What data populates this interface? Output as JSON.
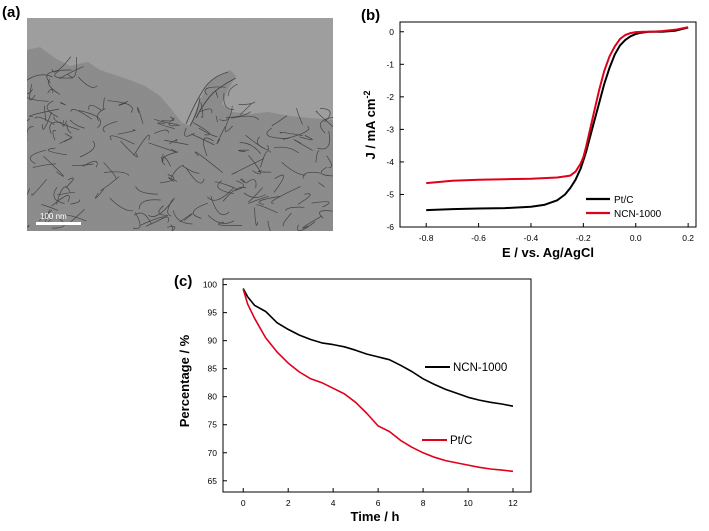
{
  "panels": {
    "a": {
      "label": "(a)",
      "scalebar_text": "100 nm"
    },
    "b": {
      "label": "(b)"
    },
    "c": {
      "label": "(c)"
    }
  },
  "chart_data": [
    {
      "type": "line",
      "panel": "(b)",
      "title": "",
      "xlabel": "E / vs. Ag/AgCl",
      "ylabel": "J / mA cm",
      "ylabel_superscript": "-2",
      "xlim": [
        -0.9,
        0.23
      ],
      "ylim": [
        -6,
        0.3
      ],
      "x_ticks": [
        -0.8,
        -0.6,
        -0.4,
        -0.2,
        0.0,
        0.2
      ],
      "x_tick_labels": [
        "-0.8",
        "-0.6",
        "-0.4",
        "-0.2",
        "0.0",
        "0.2"
      ],
      "y_ticks": [
        0,
        -1,
        -2,
        -3,
        -4,
        -5,
        -6
      ],
      "y_tick_labels": [
        "0",
        "-1",
        "-2",
        "-3",
        "-4",
        "-5",
        "-6"
      ],
      "legend_position": "bottom-right",
      "grid": false,
      "series": [
        {
          "name": "Pt/C",
          "color": "#000000",
          "x": [
            -0.8,
            -0.7,
            -0.6,
            -0.5,
            -0.4,
            -0.35,
            -0.3,
            -0.27,
            -0.25,
            -0.23,
            -0.21,
            -0.2,
            -0.19,
            -0.18,
            -0.16,
            -0.14,
            -0.12,
            -0.1,
            -0.08,
            -0.06,
            -0.04,
            -0.02,
            0.0,
            0.02,
            0.05,
            0.1,
            0.15,
            0.2
          ],
          "y": [
            -5.48,
            -5.45,
            -5.43,
            -5.42,
            -5.38,
            -5.32,
            -5.18,
            -5.0,
            -4.8,
            -4.55,
            -4.2,
            -3.95,
            -3.7,
            -3.4,
            -2.8,
            -2.2,
            -1.6,
            -1.1,
            -0.7,
            -0.42,
            -0.25,
            -0.14,
            -0.07,
            -0.03,
            0.0,
            0.0,
            0.03,
            0.13
          ]
        },
        {
          "name": "NCN-1000",
          "color": "#e0001b",
          "x": [
            -0.8,
            -0.7,
            -0.6,
            -0.5,
            -0.4,
            -0.3,
            -0.25,
            -0.23,
            -0.21,
            -0.2,
            -0.19,
            -0.18,
            -0.16,
            -0.14,
            -0.12,
            -0.1,
            -0.08,
            -0.06,
            -0.04,
            -0.02,
            0.0,
            0.03,
            0.06,
            0.1,
            0.15,
            0.2
          ],
          "y": [
            -4.65,
            -4.58,
            -4.55,
            -4.53,
            -4.52,
            -4.48,
            -4.42,
            -4.3,
            -4.05,
            -3.85,
            -3.55,
            -3.2,
            -2.5,
            -1.8,
            -1.2,
            -0.75,
            -0.45,
            -0.22,
            -0.1,
            -0.04,
            -0.01,
            0.0,
            0.0,
            0.02,
            0.06,
            0.14
          ]
        }
      ]
    },
    {
      "type": "line",
      "panel": "(c)",
      "title": "",
      "xlabel": "Time / h",
      "ylabel": "Percentage / %",
      "xlim": [
        -0.9,
        12.8
      ],
      "ylim": [
        63,
        101
      ],
      "x_ticks": [
        0,
        2,
        4,
        6,
        8,
        10,
        12
      ],
      "x_tick_labels": [
        "0",
        "2",
        "4",
        "6",
        "8",
        "10",
        "12"
      ],
      "y_ticks": [
        65,
        70,
        75,
        80,
        85,
        90,
        95,
        100
      ],
      "y_tick_labels": [
        "65",
        "70",
        "75",
        "80",
        "85",
        "90",
        "95",
        "100"
      ],
      "legend_position": "inline",
      "grid": false,
      "series": [
        {
          "name": "NCN-1000",
          "color": "#000000",
          "x": [
            0,
            0.2,
            0.5,
            1,
            1.5,
            2,
            2.5,
            3,
            3.5,
            4,
            4.5,
            5,
            5.5,
            6,
            6.5,
            7,
            7.5,
            8,
            8.5,
            9,
            9.5,
            10,
            10.5,
            11,
            11.5,
            12
          ],
          "y": [
            99.3,
            97.8,
            96.3,
            95.2,
            93.2,
            92.0,
            91.0,
            90.2,
            89.6,
            89.3,
            88.9,
            88.3,
            87.6,
            87.1,
            86.6,
            85.6,
            84.5,
            83.2,
            82.2,
            81.3,
            80.6,
            79.9,
            79.4,
            79.0,
            78.7,
            78.3
          ]
        },
        {
          "name": "Pt/C",
          "color": "#e0001b",
          "x": [
            0,
            0.2,
            0.5,
            1,
            1.5,
            2,
            2.5,
            3,
            3.5,
            4,
            4.5,
            5,
            5.5,
            6,
            6.5,
            7,
            7.5,
            8,
            8.5,
            9,
            9.5,
            10,
            10.5,
            11,
            11.5,
            12
          ],
          "y": [
            99.2,
            96.5,
            94.0,
            90.5,
            88.0,
            86.0,
            84.4,
            83.2,
            82.5,
            81.5,
            80.5,
            79.0,
            77.0,
            74.8,
            73.8,
            72.2,
            71.0,
            70.0,
            69.2,
            68.6,
            68.2,
            67.8,
            67.4,
            67.1,
            66.9,
            66.7
          ]
        }
      ],
      "legend_labels": {
        "ncn": "NCN-1000",
        "pt": "Pt/C"
      }
    }
  ]
}
